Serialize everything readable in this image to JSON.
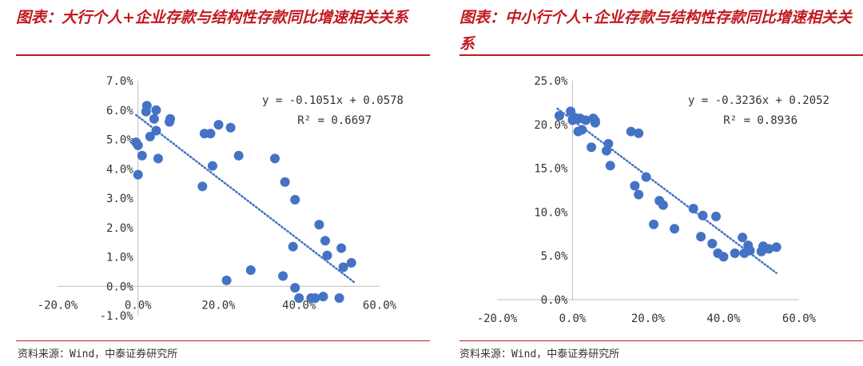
{
  "panels": [
    {
      "title": "图表：大行个人+企业存款与结构性存款同比增速相关关系",
      "source": "资料来源：Wind，中泰证券研究所",
      "chart_data": {
        "type": "scatter",
        "title": "",
        "xlabel": "",
        "ylabel": "",
        "xlim": [
          -0.2,
          0.6
        ],
        "ylim": [
          -0.01,
          0.07
        ],
        "x_ticks": [
          "-20.0%",
          "0.0%",
          "20.0%",
          "40.0%",
          "60.0%"
        ],
        "x_tick_values": [
          -0.2,
          0.0,
          0.2,
          0.4,
          0.6
        ],
        "y_ticks": [
          "-1.0%",
          "0.0%",
          "1.0%",
          "2.0%",
          "3.0%",
          "4.0%",
          "5.0%",
          "6.0%",
          "7.0%"
        ],
        "y_tick_values": [
          -0.01,
          0.0,
          0.01,
          0.02,
          0.03,
          0.04,
          0.05,
          0.06,
          0.07
        ],
        "grid": false,
        "marker_color": "#4472c4",
        "trendline": {
          "slope": -0.1051,
          "intercept": 0.0578,
          "x_range": [
            -0.005,
            0.54
          ],
          "style": "dotted"
        },
        "equation_line1": "y = -0.1051x + 0.0578",
        "equation_line2": "R² = 0.6697",
        "points": [
          [
            -0.005,
            0.049
          ],
          [
            0.0,
            0.038
          ],
          [
            0.0,
            0.048
          ],
          [
            0.01,
            0.0445
          ],
          [
            0.02,
            0.0595
          ],
          [
            0.022,
            0.0615
          ],
          [
            0.03,
            0.051
          ],
          [
            0.04,
            0.057
          ],
          [
            0.045,
            0.053
          ],
          [
            0.045,
            0.06
          ],
          [
            0.05,
            0.0435
          ],
          [
            0.078,
            0.056
          ],
          [
            0.08,
            0.057
          ],
          [
            0.16,
            0.034
          ],
          [
            0.165,
            0.052
          ],
          [
            0.18,
            0.052
          ],
          [
            0.185,
            0.041
          ],
          [
            0.2,
            0.055
          ],
          [
            0.22,
            0.002
          ],
          [
            0.23,
            0.054
          ],
          [
            0.25,
            0.0445
          ],
          [
            0.28,
            0.0055
          ],
          [
            0.34,
            0.0435
          ],
          [
            0.36,
            0.0035
          ],
          [
            0.365,
            0.0355
          ],
          [
            0.385,
            0.0135
          ],
          [
            0.39,
            0.0295
          ],
          [
            0.39,
            -0.0005
          ],
          [
            0.4,
            -0.004
          ],
          [
            0.43,
            -0.004
          ],
          [
            0.44,
            -0.004
          ],
          [
            0.45,
            0.021
          ],
          [
            0.46,
            -0.0035
          ],
          [
            0.465,
            0.0155
          ],
          [
            0.47,
            0.0105
          ],
          [
            0.5,
            -0.004
          ],
          [
            0.505,
            0.013
          ],
          [
            0.51,
            0.0065
          ],
          [
            0.53,
            0.008
          ]
        ]
      }
    },
    {
      "title": "图表：中小行个人+企业存款与结构性存款同比增速相关关系",
      "source": "资料来源：Wind，中泰证券研究所",
      "chart_data": {
        "type": "scatter",
        "title": "",
        "xlabel": "",
        "ylabel": "",
        "xlim": [
          -0.2,
          0.6
        ],
        "ylim": [
          0.0,
          0.25
        ],
        "x_ticks": [
          "-20.0%",
          "0.0%",
          "20.0%",
          "40.0%",
          "60.0%"
        ],
        "x_tick_values": [
          -0.2,
          0.0,
          0.2,
          0.4,
          0.6
        ],
        "y_ticks": [
          "0.0%",
          "5.0%",
          "10.0%",
          "15.0%",
          "20.0%",
          "25.0%"
        ],
        "y_tick_values": [
          0.0,
          0.05,
          0.1,
          0.15,
          0.2,
          0.25
        ],
        "grid": false,
        "marker_color": "#4472c4",
        "trendline": {
          "slope": -0.3236,
          "intercept": 0.2052,
          "x_range": [
            -0.04,
            0.54
          ],
          "style": "dotted"
        },
        "equation_line1": "y = -0.3236x + 0.2052",
        "equation_line2": "R² = 0.8936",
        "points": [
          [
            -0.035,
            0.21
          ],
          [
            -0.005,
            0.215
          ],
          [
            0.0,
            0.205
          ],
          [
            0.005,
            0.208
          ],
          [
            0.01,
            0.206
          ],
          [
            0.015,
            0.192
          ],
          [
            0.02,
            0.207
          ],
          [
            0.025,
            0.194
          ],
          [
            0.035,
            0.205
          ],
          [
            0.05,
            0.174
          ],
          [
            0.055,
            0.207
          ],
          [
            0.06,
            0.204
          ],
          [
            0.06,
            0.202
          ],
          [
            0.09,
            0.17
          ],
          [
            0.095,
            0.178
          ],
          [
            0.1,
            0.153
          ],
          [
            0.155,
            0.192
          ],
          [
            0.165,
            0.13
          ],
          [
            0.175,
            0.19
          ],
          [
            0.175,
            0.12
          ],
          [
            0.195,
            0.14
          ],
          [
            0.215,
            0.086
          ],
          [
            0.23,
            0.113
          ],
          [
            0.24,
            0.108
          ],
          [
            0.27,
            0.081
          ],
          [
            0.32,
            0.104
          ],
          [
            0.34,
            0.072
          ],
          [
            0.345,
            0.096
          ],
          [
            0.37,
            0.064
          ],
          [
            0.38,
            0.095
          ],
          [
            0.385,
            0.053
          ],
          [
            0.4,
            0.049
          ],
          [
            0.43,
            0.053
          ],
          [
            0.45,
            0.071
          ],
          [
            0.455,
            0.053
          ],
          [
            0.465,
            0.062
          ],
          [
            0.47,
            0.056
          ],
          [
            0.5,
            0.055
          ],
          [
            0.505,
            0.061
          ],
          [
            0.52,
            0.058
          ],
          [
            0.54,
            0.06
          ]
        ]
      }
    }
  ]
}
